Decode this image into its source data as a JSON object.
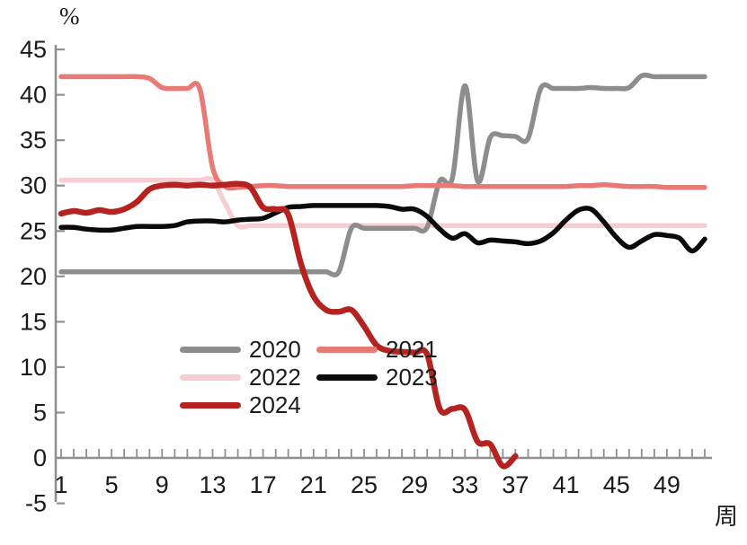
{
  "chart_data": {
    "type": "line",
    "title": "",
    "unit_label": "%",
    "xlabel": "周",
    "x_unit": "week",
    "x_range": [
      1,
      52
    ],
    "x_tick_labels": [
      1,
      5,
      9,
      13,
      17,
      21,
      25,
      29,
      33,
      37,
      41,
      45,
      49
    ],
    "ylim": [
      -5,
      45
    ],
    "y_ticks": [
      45,
      40,
      35,
      30,
      25,
      20,
      15,
      10,
      5,
      0,
      -5
    ],
    "grid": false,
    "legend_position": "inside-lower-left",
    "legend_columns": 2,
    "axis_color": "#8f8f8f",
    "text_color": "#1a1a1a",
    "series": [
      {
        "name": "2020",
        "color": "#8d8d8d",
        "line_width": 5.5,
        "z": 2,
        "start_week": 1,
        "values": [
          20.5,
          20.5,
          20.5,
          20.5,
          20.5,
          20.5,
          20.5,
          20.5,
          20.5,
          20.5,
          20.5,
          20.5,
          20.5,
          20.5,
          20.5,
          20.5,
          20.5,
          20.5,
          20.5,
          20.5,
          20.5,
          20.5,
          20.5,
          25.3,
          25.3,
          25.3,
          25.3,
          25.3,
          25.3,
          25.4,
          30.5,
          30.8,
          41.0,
          30.5,
          35.3,
          35.5,
          35.4,
          35.2,
          40.7,
          40.7,
          40.7,
          40.7,
          40.8,
          40.7,
          40.7,
          40.8,
          42.1,
          42.0,
          42.0,
          42.0,
          42.0,
          42.0
        ]
      },
      {
        "name": "2021",
        "color": "#e87a75",
        "line_width": 5.5,
        "z": 3,
        "start_week": 1,
        "values": [
          42.0,
          42.0,
          42.0,
          42.0,
          42.0,
          42.0,
          42.0,
          41.8,
          40.8,
          40.7,
          40.7,
          40.6,
          32.0,
          29.9,
          29.8,
          29.9,
          30.0,
          30.0,
          29.9,
          29.9,
          29.9,
          29.9,
          29.9,
          29.9,
          29.9,
          29.9,
          29.9,
          29.9,
          30.0,
          30.0,
          30.0,
          30.0,
          29.9,
          29.9,
          29.9,
          29.9,
          29.9,
          29.9,
          29.9,
          29.9,
          29.9,
          30.0,
          30.0,
          30.1,
          30.0,
          29.9,
          29.9,
          29.9,
          29.8,
          29.8,
          29.8,
          29.8
        ]
      },
      {
        "name": "2022",
        "color": "#f6ced1",
        "line_width": 5.5,
        "z": 1,
        "start_week": 1,
        "values": [
          30.6,
          30.6,
          30.6,
          30.6,
          30.6,
          30.6,
          30.6,
          30.6,
          30.6,
          30.6,
          30.6,
          30.6,
          30.6,
          28.0,
          25.6,
          25.6,
          25.6,
          25.6,
          25.6,
          25.6,
          25.6,
          25.6,
          25.6,
          25.6,
          25.6,
          25.6,
          25.6,
          25.6,
          25.6,
          25.6,
          25.6,
          25.6,
          25.6,
          25.6,
          25.6,
          25.6,
          25.6,
          25.6,
          25.6,
          25.6,
          25.6,
          25.6,
          25.6,
          25.6,
          25.6,
          25.6,
          25.6,
          25.6,
          25.6,
          25.6,
          25.6,
          25.6
        ]
      },
      {
        "name": "2023",
        "color": "#0a0a0a",
        "line_width": 5.5,
        "z": 4,
        "start_week": 1,
        "values": [
          25.4,
          25.4,
          25.2,
          25.1,
          25.1,
          25.3,
          25.5,
          25.5,
          25.5,
          25.6,
          26.0,
          26.1,
          26.1,
          26.0,
          26.2,
          26.3,
          26.4,
          27.0,
          27.6,
          27.7,
          27.8,
          27.8,
          27.8,
          27.8,
          27.8,
          27.8,
          27.7,
          27.4,
          27.4,
          26.6,
          25.2,
          24.2,
          24.7,
          23.7,
          24.0,
          23.9,
          23.8,
          23.6,
          23.9,
          24.8,
          26.2,
          27.3,
          27.4,
          26.0,
          24.3,
          23.2,
          23.9,
          24.6,
          24.5,
          24.2,
          22.8,
          24.1
        ]
      },
      {
        "name": "2024",
        "color": "#b4231f",
        "line_width": 6.5,
        "z": 5,
        "start_week": 1,
        "values": [
          26.9,
          27.2,
          27.0,
          27.3,
          27.1,
          27.4,
          28.2,
          29.6,
          30.0,
          30.1,
          30.0,
          30.1,
          30.0,
          30.1,
          30.2,
          29.8,
          27.6,
          27.4,
          26.8,
          21.4,
          17.8,
          16.3,
          16.1,
          16.3,
          14.5,
          12.4,
          11.8,
          11.7,
          11.6,
          11.4,
          5.4,
          5.4,
          5.3,
          1.8,
          1.5,
          -0.9,
          0.2
        ]
      }
    ]
  },
  "legend": {
    "entries": [
      "2020",
      "2021",
      "2022",
      "2023",
      "2024"
    ]
  }
}
